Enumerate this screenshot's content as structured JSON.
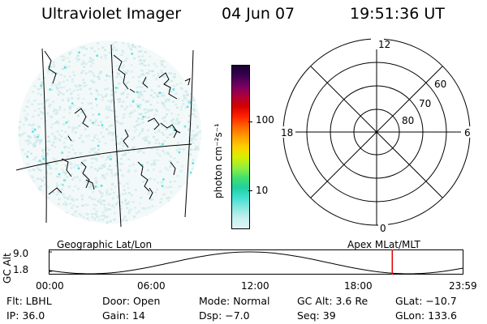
{
  "header": {
    "title": "Ultraviolet Imager",
    "date": "04 Jun 07",
    "time": "19:51:36 UT"
  },
  "colorbar": {
    "label": "photon cm⁻²s⁻¹",
    "ticks": [
      "100",
      "10"
    ],
    "colors": [
      "#1a0033",
      "#3a0050",
      "#7a0060",
      "#b0003a",
      "#d40000",
      "#ff2000",
      "#ff6a00",
      "#ffa000",
      "#ffd000",
      "#d8f000",
      "#90ee40",
      "#40e070",
      "#20d0a0",
      "#40e0d0",
      "#90e8e0",
      "#c8f0f0",
      "#e0f4f4"
    ]
  },
  "polar": {
    "mlt_labels": {
      "top": "12",
      "left": "18",
      "right": "6",
      "bottom": "0"
    },
    "lat_labels": [
      "60",
      "70",
      "80"
    ]
  },
  "timeline": {
    "left_title": "Geographic Lat/Lon",
    "right_title": "Apex MLat/MLT",
    "axis_label": "GC Alt",
    "y_ticks": [
      "9.0",
      "1.8"
    ],
    "x_ticks": [
      "00:00",
      "06:00",
      "12:00",
      "18:00",
      "23:59"
    ],
    "current_time_fraction": 0.83,
    "marker_color": "#e00000"
  },
  "info": {
    "flt": "Flt: LBHL",
    "door": "Door: Open",
    "mode": "Mode: Normal",
    "gc_alt": "GC Alt: 3.6 Re",
    "glat": "GLat: −10.7",
    "ip": "IP: 36.0",
    "gain": "Gain: 14",
    "dsp": "Dsp:   −7.0",
    "seq": "Seq: 39",
    "glon": "GLon: 133.6"
  },
  "imager_colors": {
    "background_speckle": "#c8e6e6",
    "bright_speckle": "#40e0e0",
    "coastline": "#000000"
  }
}
